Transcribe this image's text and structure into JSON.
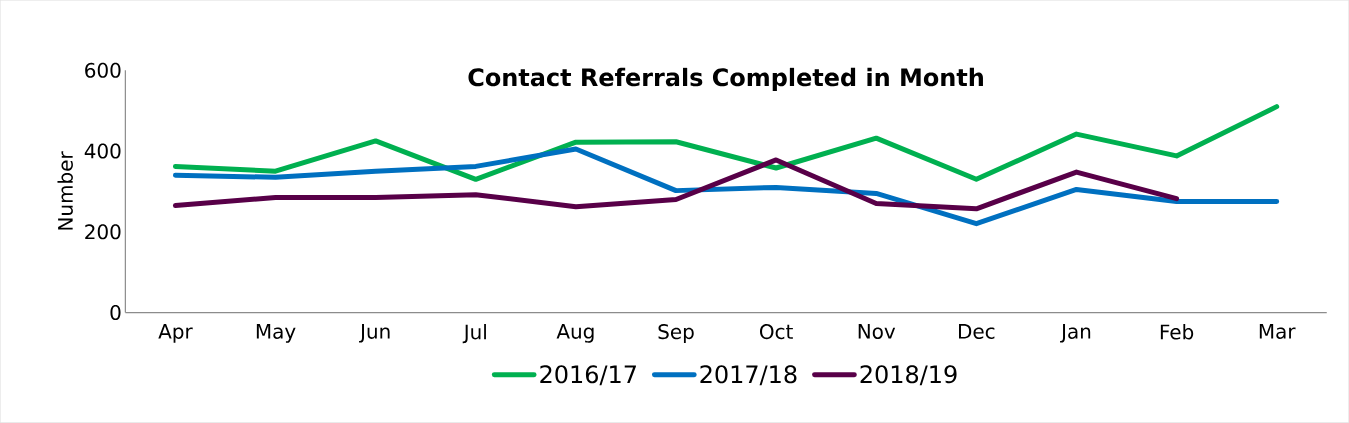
{
  "chart_data": {
    "type": "line",
    "title": "Contact Referrals Completed in Month",
    "ylabel": "Number",
    "categories": [
      "Apr",
      "May",
      "Jun",
      "Jul",
      "Aug",
      "Sep",
      "Oct",
      "Nov",
      "Dec",
      "Jan",
      "Feb",
      "Mar"
    ],
    "series": [
      {
        "name": "2016/17",
        "color": "#00b050",
        "values": [
          362,
          350,
          425,
          330,
          422,
          423,
          358,
          432,
          330,
          442,
          388,
          510
        ]
      },
      {
        "name": "2017/18",
        "color": "#0070c0",
        "values": [
          340,
          335,
          350,
          362,
          405,
          302,
          310,
          295,
          220,
          305,
          275,
          275
        ]
      },
      {
        "name": "2018/19",
        "color": "#580048",
        "values": [
          265,
          285,
          285,
          292,
          262,
          280,
          378,
          270,
          257,
          348,
          282,
          null
        ]
      }
    ],
    "ylim": [
      0,
      600
    ],
    "yticks": [
      0,
      200,
      400,
      600
    ],
    "grid": false,
    "legend": "bottom",
    "marker": "none",
    "line_style": "solid"
  }
}
